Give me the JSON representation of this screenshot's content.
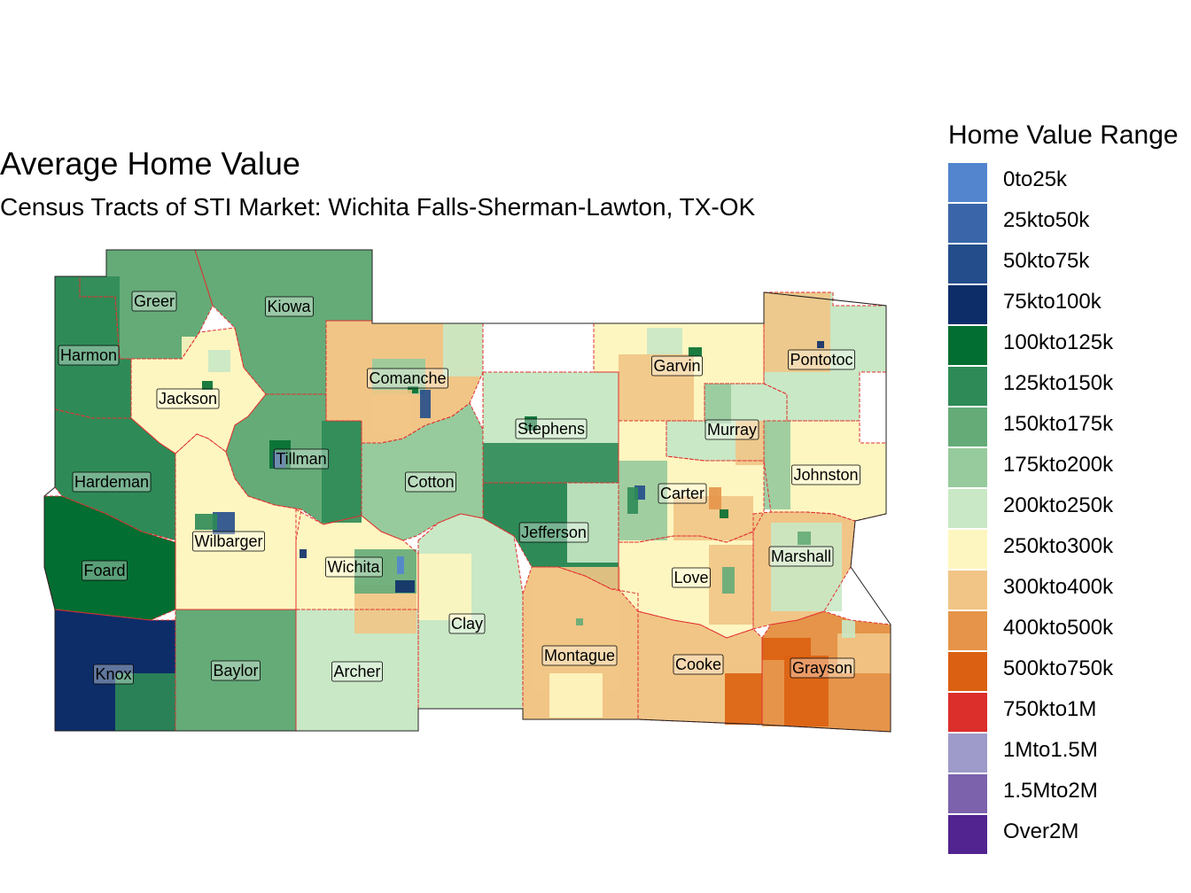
{
  "title": "Average Home Value",
  "subtitle": "Census Tracts of STI Market: Wichita Falls-Sherman-Lawton, TX-OK",
  "legend": {
    "title": "Home Value Range",
    "items": [
      {
        "label": "0to25k",
        "color": "#5385cf"
      },
      {
        "label": "25kto50k",
        "color": "#3a66a9"
      },
      {
        "label": "50kto75k",
        "color": "#234d8b"
      },
      {
        "label": "75kto100k",
        "color": "#0d2d69"
      },
      {
        "label": "100kto125k",
        "color": "#036e31"
      },
      {
        "label": "125kto150k",
        "color": "#2e8b57"
      },
      {
        "label": "150kto175k",
        "color": "#64ab78"
      },
      {
        "label": "175kto200k",
        "color": "#97ca9c"
      },
      {
        "label": "200kto250k",
        "color": "#c9e8c5"
      },
      {
        "label": "250kto300k",
        "color": "#fef6c0"
      },
      {
        "label": "300kto400k",
        "color": "#f1c586"
      },
      {
        "label": "400kto500k",
        "color": "#e59449"
      },
      {
        "label": "500kto750k",
        "color": "#db6011"
      },
      {
        "label": "750kto1M",
        "color": "#dc2e2b"
      },
      {
        "label": "1Mto1.5M",
        "color": "#9e9ac9"
      },
      {
        "label": "1.5Mto2M",
        "color": "#7c62ad"
      },
      {
        "label": "Over2M",
        "color": "#52248f"
      }
    ]
  },
  "counties": [
    {
      "name": "Greer",
      "class": "150kto175k"
    },
    {
      "name": "Kiowa",
      "class": "150kto175k"
    },
    {
      "name": "Harmon",
      "class": "125kto150k"
    },
    {
      "name": "Jackson",
      "class": "250kto300k"
    },
    {
      "name": "Tillman",
      "class": "150kto175k"
    },
    {
      "name": "Hardeman",
      "class": "125kto150k"
    },
    {
      "name": "Foard",
      "class": "100kto125k"
    },
    {
      "name": "Wilbarger",
      "class": "250kto300k"
    },
    {
      "name": "Knox",
      "class": "75kto100k"
    },
    {
      "name": "Baylor",
      "class": "150kto175k"
    },
    {
      "name": "Archer",
      "class": "200kto250k"
    },
    {
      "name": "Wichita",
      "class": "250kto300k"
    },
    {
      "name": "Comanche",
      "class": "300kto400k"
    },
    {
      "name": "Cotton",
      "class": "175kto200k"
    },
    {
      "name": "Clay",
      "class": "200kto250k"
    },
    {
      "name": "Stephens",
      "class": "200kto250k"
    },
    {
      "name": "Jefferson",
      "class": "125kto150k"
    },
    {
      "name": "Montague",
      "class": "300kto400k"
    },
    {
      "name": "Garvin",
      "class": "250kto300k"
    },
    {
      "name": "Murray",
      "class": "200kto250k"
    },
    {
      "name": "Pontotoc",
      "class": "200kto250k"
    },
    {
      "name": "Johnston",
      "class": "250kto300k"
    },
    {
      "name": "Carter",
      "class": "250kto300k"
    },
    {
      "name": "Love",
      "class": "250kto300k"
    },
    {
      "name": "Marshall",
      "class": "300kto400k"
    },
    {
      "name": "Cooke",
      "class": "300kto400k"
    },
    {
      "name": "Grayson",
      "class": "400kto500k"
    }
  ]
}
